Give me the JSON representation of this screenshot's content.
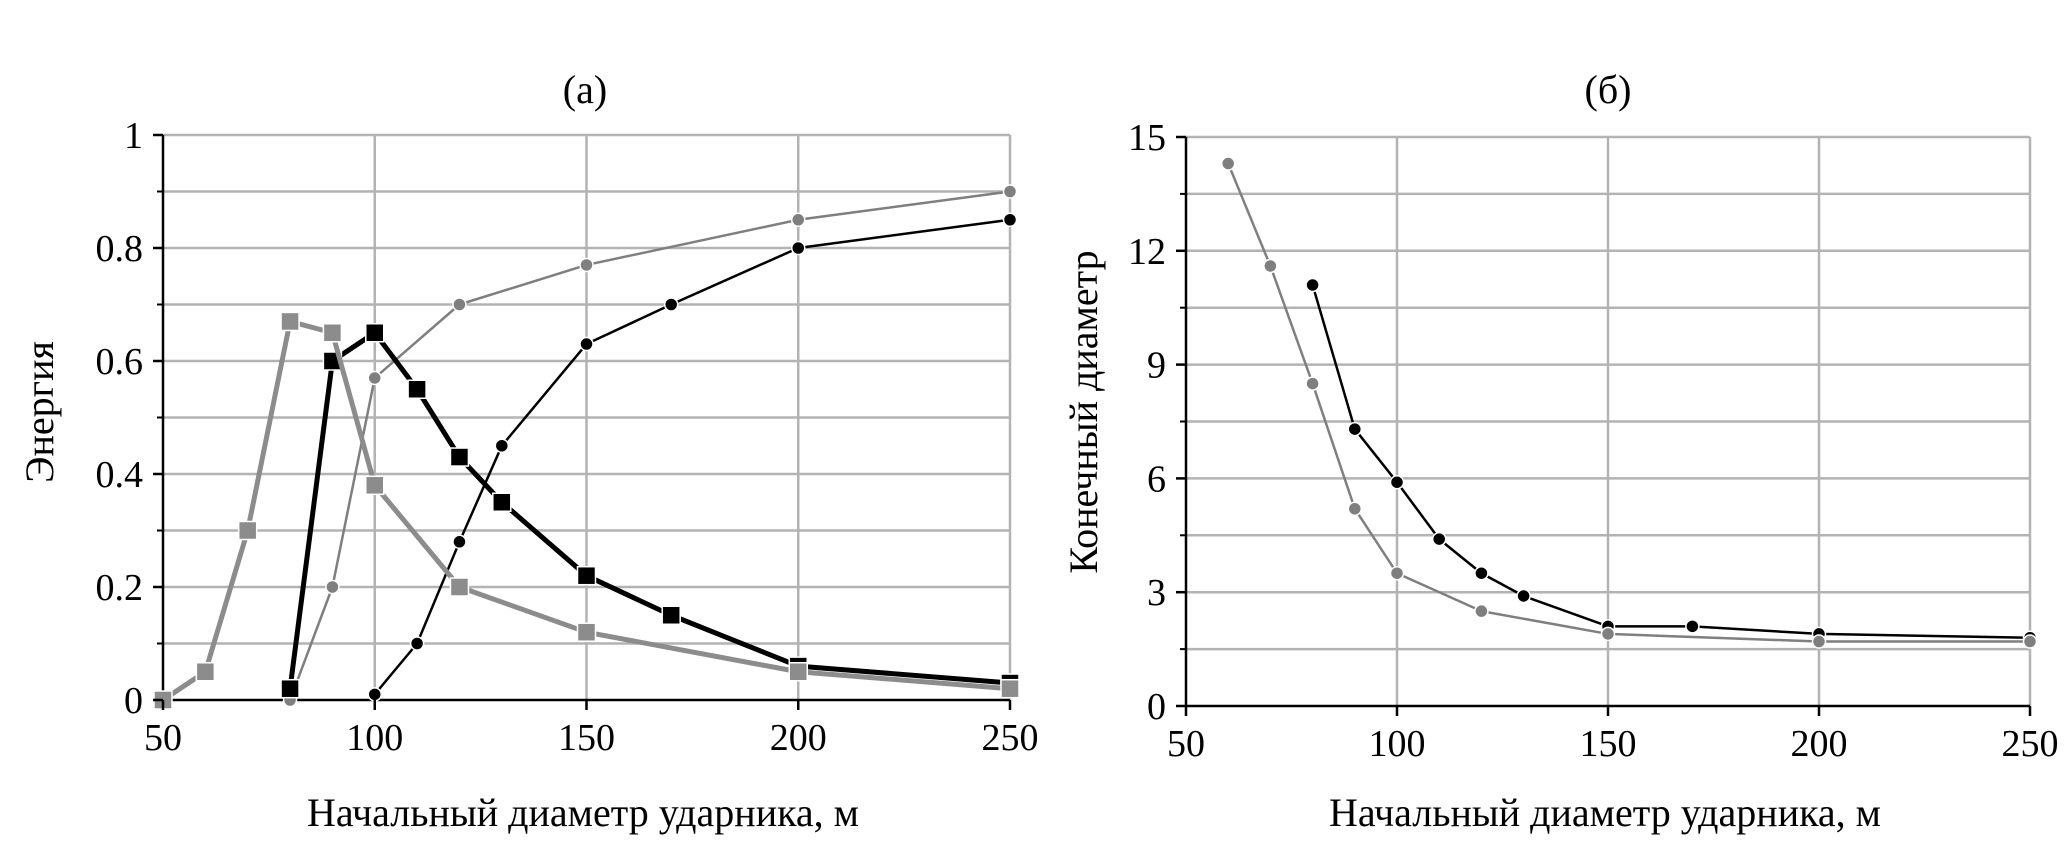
{
  "chart_data": [
    {
      "type": "line",
      "title": "(а)",
      "xlabel": "Начальный диаметр ударника, м",
      "ylabel": "Энергия",
      "xlim": [
        50,
        250
      ],
      "ylim": [
        0,
        1
      ],
      "xticks": [
        50,
        100,
        150,
        200,
        250
      ],
      "yticks": [
        0,
        0.2,
        0.4,
        0.6,
        0.8,
        1
      ],
      "xtick_labels": [
        "50",
        "100",
        "150",
        "200",
        "250"
      ],
      "ytick_labels": [
        "0",
        "0.2",
        "0.4",
        "0.6",
        "0.8",
        "1"
      ],
      "grid": true,
      "series": [
        {
          "color": "#7f7f7f",
          "marker": "circle",
          "x": [
            80,
            90,
            100,
            120,
            150,
            200,
            250
          ],
          "y": [
            0.0,
            0.2,
            0.57,
            0.7,
            0.77,
            0.85,
            0.9
          ]
        },
        {
          "color": "#000000",
          "marker": "circle",
          "x": [
            100,
            110,
            120,
            130,
            150,
            170,
            200,
            250
          ],
          "y": [
            0.01,
            0.1,
            0.28,
            0.45,
            0.63,
            0.7,
            0.8,
            0.85
          ]
        },
        {
          "color": "#000000",
          "marker": "square",
          "x": [
            80,
            90,
            100,
            110,
            120,
            130,
            150,
            170,
            200,
            250
          ],
          "y": [
            0.02,
            0.6,
            0.65,
            0.55,
            0.43,
            0.35,
            0.22,
            0.15,
            0.06,
            0.03
          ]
        },
        {
          "color": "#8c8c8c",
          "marker": "square",
          "x": [
            50,
            60,
            70,
            80,
            90,
            100,
            120,
            150,
            200,
            250
          ],
          "y": [
            0.0,
            0.05,
            0.3,
            0.67,
            0.65,
            0.38,
            0.2,
            0.12,
            0.05,
            0.02
          ]
        }
      ]
    },
    {
      "type": "line",
      "title": "(б)",
      "xlabel": "Начальный диаметр ударника, м",
      "ylabel": "Конечный  диаметр",
      "xlim": [
        50,
        250
      ],
      "ylim": [
        0,
        15
      ],
      "xticks": [
        50,
        100,
        150,
        200,
        250
      ],
      "yticks": [
        0,
        3,
        6,
        9,
        12,
        15
      ],
      "xtick_labels": [
        "50",
        "100",
        "150",
        "200",
        "250"
      ],
      "ytick_labels": [
        "0",
        "3",
        "6",
        "9",
        "12",
        "15"
      ],
      "grid": true,
      "series": [
        {
          "color": "#000000",
          "marker": "circle",
          "x": [
            80,
            90,
            100,
            110,
            120,
            130,
            150,
            170,
            200,
            250
          ],
          "y": [
            11.1,
            7.3,
            5.9,
            4.4,
            3.5,
            2.9,
            2.1,
            2.1,
            1.9,
            1.8
          ]
        },
        {
          "color": "#7f7f7f",
          "marker": "circle",
          "x": [
            60,
            70,
            80,
            90,
            100,
            120,
            150,
            200,
            250
          ],
          "y": [
            14.3,
            11.6,
            8.5,
            5.2,
            3.5,
            2.5,
            1.9,
            1.7,
            1.7
          ]
        }
      ]
    }
  ]
}
